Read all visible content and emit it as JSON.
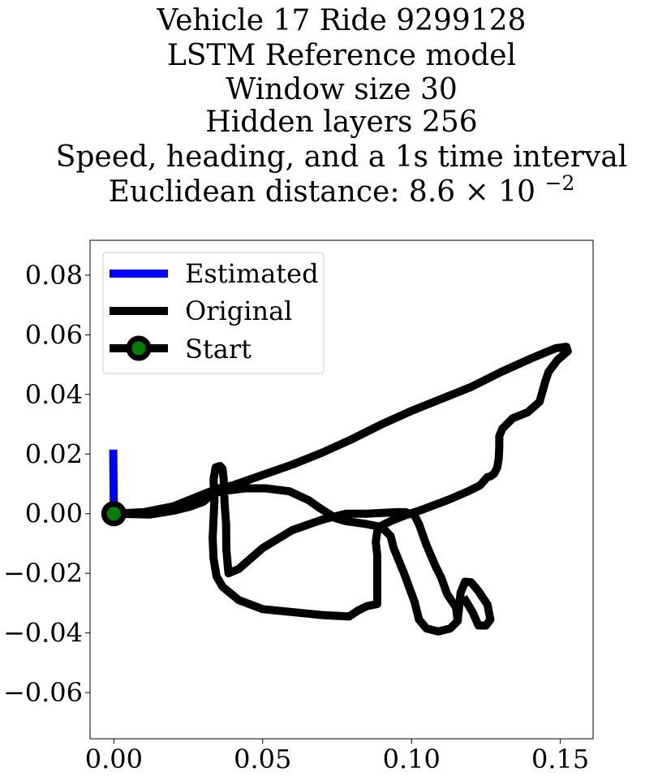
{
  "chart_data": {
    "type": "line",
    "title_lines": [
      "Vehicle 17 Ride 9299128",
      "LSTM Reference model",
      "Window size 30",
      "Hidden layers 256",
      "Speed, heading, and a 1s time interval",
      "Euclidean distance: 8.6×10⁻²"
    ],
    "title_main": "Euclidean distance: 8.6",
    "title_times": "×",
    "title_base": "10",
    "title_exponent": "−2",
    "xlabel": "",
    "ylabel": "",
    "xlim": [
      -0.008,
      0.161
    ],
    "ylim": [
      -0.0755,
      0.0917
    ],
    "x_ticks": [
      {
        "value": 0.0,
        "label": "0.00"
      },
      {
        "value": 0.05,
        "label": "0.05"
      },
      {
        "value": 0.1,
        "label": "0.10"
      },
      {
        "value": 0.15,
        "label": "0.15"
      }
    ],
    "y_ticks": [
      {
        "value": 0.08,
        "label": "0.08"
      },
      {
        "value": 0.06,
        "label": "0.06"
      },
      {
        "value": 0.04,
        "label": "0.04"
      },
      {
        "value": 0.02,
        "label": "0.02"
      },
      {
        "value": 0.0,
        "label": "0.00"
      },
      {
        "value": -0.02,
        "label": "−0.02"
      },
      {
        "value": -0.04,
        "label": "−0.04"
      },
      {
        "value": -0.06,
        "label": "−0.06"
      }
    ],
    "grid": false,
    "legend_position": "top-left",
    "series": [
      {
        "name": "Estimated",
        "color": "#0000ff",
        "points": [
          [
            0.0,
            0.0
          ],
          [
            -0.0002,
            0.0215
          ]
        ]
      },
      {
        "name": "Original",
        "color": "#000000",
        "points": [
          [
            0.0,
            0.0
          ],
          [
            0.01,
            0.0005
          ],
          [
            0.02,
            0.0025
          ],
          [
            0.03,
            0.0065
          ],
          [
            0.035,
            0.0085
          ],
          [
            0.04,
            0.0095
          ],
          [
            0.05,
            0.013
          ],
          [
            0.06,
            0.0165
          ],
          [
            0.07,
            0.0205
          ],
          [
            0.08,
            0.025
          ],
          [
            0.09,
            0.03
          ],
          [
            0.1,
            0.0345
          ],
          [
            0.11,
            0.0385
          ],
          [
            0.12,
            0.0425
          ],
          [
            0.13,
            0.0475
          ],
          [
            0.14,
            0.052
          ],
          [
            0.1485,
            0.0555
          ],
          [
            0.152,
            0.056
          ],
          [
            0.1525,
            0.0545
          ],
          [
            0.149,
            0.0515
          ],
          [
            0.146,
            0.0475
          ],
          [
            0.145,
            0.0445
          ],
          [
            0.143,
            0.0375
          ],
          [
            0.139,
            0.034
          ],
          [
            0.134,
            0.032
          ],
          [
            0.1305,
            0.0285
          ],
          [
            0.1295,
            0.026
          ],
          [
            0.1295,
            0.0225
          ],
          [
            0.1293,
            0.0185
          ],
          [
            0.1288,
            0.0155
          ],
          [
            0.1278,
            0.0135
          ],
          [
            0.1265,
            0.0125
          ],
          [
            0.1255,
            0.0123
          ],
          [
            0.123,
            0.0095
          ],
          [
            0.119,
            0.0075
          ],
          [
            0.112,
            0.0045
          ],
          [
            0.104,
            0.0015
          ],
          [
            0.098,
            -0.0005
          ],
          [
            0.093,
            -0.0025
          ],
          [
            0.09,
            -0.004
          ],
          [
            0.0885,
            -0.006
          ],
          [
            0.088,
            -0.0095
          ],
          [
            0.0885,
            -0.014
          ],
          [
            0.0885,
            -0.0175
          ],
          [
            0.0885,
            -0.0205
          ],
          [
            0.0885,
            -0.0255
          ],
          [
            0.0885,
            -0.0303
          ],
          [
            0.085,
            -0.031
          ],
          [
            0.082,
            -0.0325
          ],
          [
            0.079,
            -0.0345
          ],
          [
            0.07,
            -0.034
          ],
          [
            0.05,
            -0.032
          ],
          [
            0.042,
            -0.029
          ],
          [
            0.0365,
            -0.0245
          ],
          [
            0.0345,
            -0.021
          ],
          [
            0.0335,
            -0.015
          ],
          [
            0.0332,
            -0.008
          ],
          [
            0.0335,
            -0.002
          ],
          [
            0.0338,
            0.0045
          ],
          [
            0.0335,
            0.0115
          ],
          [
            0.0342,
            0.0155
          ],
          [
            0.0357,
            0.016
          ],
          [
            0.0365,
            0.015
          ],
          [
            0.0369,
            0.0115
          ],
          [
            0.0372,
            0.0035
          ],
          [
            0.0377,
            -0.0035
          ],
          [
            0.0378,
            -0.012
          ],
          [
            0.0385,
            -0.02
          ],
          [
            0.042,
            -0.0185
          ],
          [
            0.05,
            -0.0115
          ],
          [
            0.06,
            -0.0055
          ],
          [
            0.07,
            -0.002
          ],
          [
            0.078,
            0.0
          ],
          [
            0.085,
            0.0
          ],
          [
            0.095,
            0.0005
          ],
          [
            0.098,
            0.0005
          ],
          [
            0.101,
            -0.0005
          ],
          [
            0.1025,
            -0.0035
          ],
          [
            0.105,
            -0.0105
          ],
          [
            0.108,
            -0.0175
          ],
          [
            0.11,
            -0.0215
          ],
          [
            0.112,
            -0.027
          ],
          [
            0.115,
            -0.0315
          ],
          [
            0.1155,
            -0.036
          ],
          [
            0.113,
            -0.0385
          ],
          [
            0.109,
            -0.0395
          ],
          [
            0.105,
            -0.0385
          ],
          [
            0.1025,
            -0.0355
          ],
          [
            0.101,
            -0.0295
          ],
          [
            0.0975,
            -0.02
          ],
          [
            0.094,
            -0.0115
          ],
          [
            0.093,
            -0.0075
          ],
          [
            0.09,
            -0.0045
          ],
          [
            0.085,
            -0.0035
          ],
          [
            0.078,
            -0.0025
          ],
          [
            0.0745,
            -0.0015
          ],
          [
            0.069,
            0.002
          ],
          [
            0.0655,
            0.0045
          ],
          [
            0.059,
            0.0075
          ],
          [
            0.051,
            0.0085
          ],
          [
            0.044,
            0.0085
          ],
          [
            0.036,
            0.0075
          ],
          [
            0.033,
            0.0065
          ],
          [
            0.03,
            0.004
          ],
          [
            0.026,
            0.0025
          ],
          [
            0.02,
            0.001
          ],
          [
            0.012,
            -0.0003
          ],
          [
            0.0,
            0.0
          ]
        ]
      },
      {
        "name": "Original",
        "color": "#000000",
        "points": [
          [
            0.1155,
            -0.036
          ],
          [
            0.1165,
            -0.0265
          ],
          [
            0.118,
            -0.0228
          ],
          [
            0.12,
            -0.023
          ],
          [
            0.1225,
            -0.026
          ],
          [
            0.1255,
            -0.0305
          ],
          [
            0.1265,
            -0.0355
          ],
          [
            0.125,
            -0.0375
          ],
          [
            0.1225,
            -0.0375
          ],
          [
            0.1205,
            -0.033
          ],
          [
            0.1175,
            -0.028
          ]
        ]
      },
      {
        "name": "Start",
        "color": "#000000",
        "marker": true,
        "marker_face": "#008000",
        "points": [
          [
            0.0,
            0.0
          ]
        ]
      }
    ],
    "legend": [
      {
        "name": "Estimated",
        "color": "#0000ff",
        "marker": false
      },
      {
        "name": "Original",
        "color": "#000000",
        "marker": false
      },
      {
        "name": "Start",
        "color": "#000000",
        "marker": true,
        "marker_face": "#008000"
      }
    ]
  }
}
